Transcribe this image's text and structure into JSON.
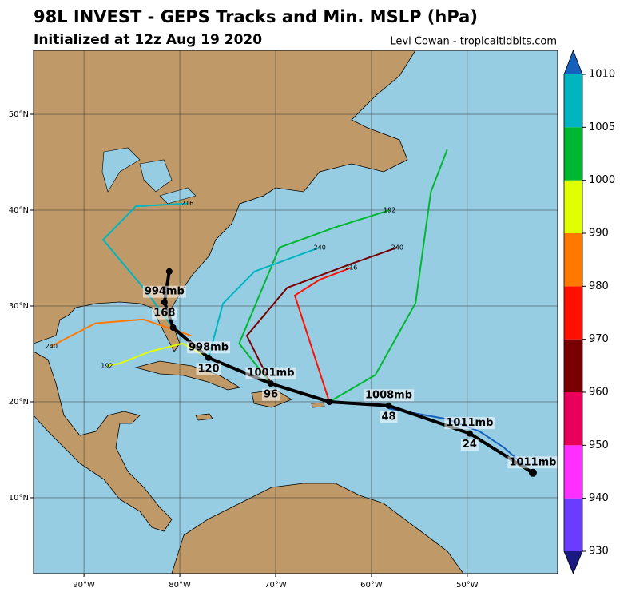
{
  "title": "98L INVEST - GEPS Tracks and Min. MSLP (hPa)",
  "subtitle": "Initialized at 12z Aug 19 2020",
  "credit": "Levi Cowan - tropicaltidbits.com",
  "map": {
    "lonlim": [
      -95.26,
      -40.57
    ],
    "latlim": [
      2.08,
      56.67
    ],
    "lon_ticks": [
      {
        "value": -90,
        "label": "90°W"
      },
      {
        "value": -80,
        "label": "80°W"
      },
      {
        "value": -70,
        "label": "70°W"
      },
      {
        "value": -60,
        "label": "60°W"
      },
      {
        "value": -50,
        "label": "50°W"
      }
    ],
    "lat_ticks": [
      {
        "value": 10,
        "label": "10°N"
      },
      {
        "value": 20,
        "label": "20°N"
      },
      {
        "value": 30,
        "label": "30°N"
      },
      {
        "value": 40,
        "label": "40°N"
      },
      {
        "value": 50,
        "label": "50°N"
      }
    ],
    "grid": true
  },
  "colorbar": {
    "ticks": [
      930,
      940,
      950,
      960,
      970,
      980,
      990,
      1000,
      1005,
      1010
    ],
    "colors": [
      "#6a3cff",
      "#ff30ff",
      "#e8005a",
      "#780000",
      "#ff1000",
      "#ff7800",
      "#e0ff00",
      "#00b830",
      "#00b4c0"
    ],
    "under_color": "#1a1a80",
    "over_color": "#1560bd"
  },
  "member_tracks": [
    {
      "color": "#00b830",
      "lon": [
        -64.4,
        -59.6,
        -55.4,
        -53.8,
        -52.1
      ],
      "lat": [
        20.0,
        22.8,
        30.3,
        41.9,
        46.3
      ]
    },
    {
      "color": "#00b830",
      "lon": [
        -70.5,
        -73.8,
        -69.6,
        -63.8,
        -58.1
      ],
      "lat": [
        21.9,
        26.1,
        36.1,
        38.2,
        40.0
      ],
      "end_hour": 192
    },
    {
      "color": "#00b4c0",
      "lon": [
        -77.0,
        -75.5,
        -72.2,
        -65.4
      ],
      "lat": [
        24.6,
        30.25,
        33.6,
        36.1
      ],
      "end_hour": 240
    },
    {
      "color": "#780000",
      "lon": [
        -70.5,
        -73.0,
        -68.8,
        -62.1,
        -57.3
      ],
      "lat": [
        21.9,
        26.9,
        31.9,
        34.4,
        36.1
      ],
      "end_hour": 240
    },
    {
      "color": "#e0ff00",
      "lon": [
        -77.0,
        -79.7,
        -83.1,
        -86.3,
        -87.6
      ],
      "lat": [
        24.6,
        26.1,
        25.25,
        24.0,
        23.75
      ],
      "end_hour": 192
    },
    {
      "color": "#ff7800",
      "lon": [
        -78.8,
        -83.8,
        -88.8,
        -92.1,
        -93.4
      ],
      "lat": [
        26.9,
        28.6,
        28.2,
        26.5,
        25.8
      ],
      "end_hour": 240
    },
    {
      "color": "#00b4c0",
      "lon": [
        -80.7,
        -83.8,
        -88.0,
        -84.6,
        -79.2
      ],
      "lat": [
        27.75,
        31.9,
        36.9,
        40.4,
        40.7
      ],
      "end_hour": 216
    },
    {
      "color": "#1560bd",
      "lon": [
        -43.2,
        -46.2,
        -48.7,
        -52.1,
        -58.2
      ],
      "lat": [
        12.6,
        15.25,
        16.9,
        18.2,
        19.3
      ]
    },
    {
      "color": "#ff1000",
      "lon": [
        -64.4,
        -68.0,
        -65.4,
        -62.1
      ],
      "lat": [
        20.0,
        31.1,
        32.75,
        34.0
      ],
      "end_hour": 216
    }
  ],
  "mean_track": {
    "lon": [
      -43.16,
      -49.75,
      -58.2,
      -64.4,
      -70.5,
      -77.0,
      -80.7,
      -81.6,
      -81.1
    ],
    "lat": [
      12.6,
      16.7,
      19.6,
      20.0,
      21.9,
      24.6,
      27.75,
      30.4,
      33.6
    ],
    "hour_labels": [
      null,
      24,
      48,
      null,
      96,
      120,
      null,
      168,
      null
    ],
    "pressure_labels": [
      "1011mb",
      "1011mb",
      "1008mb",
      null,
      "1001mb",
      "998mb",
      null,
      "994mb",
      null
    ]
  }
}
